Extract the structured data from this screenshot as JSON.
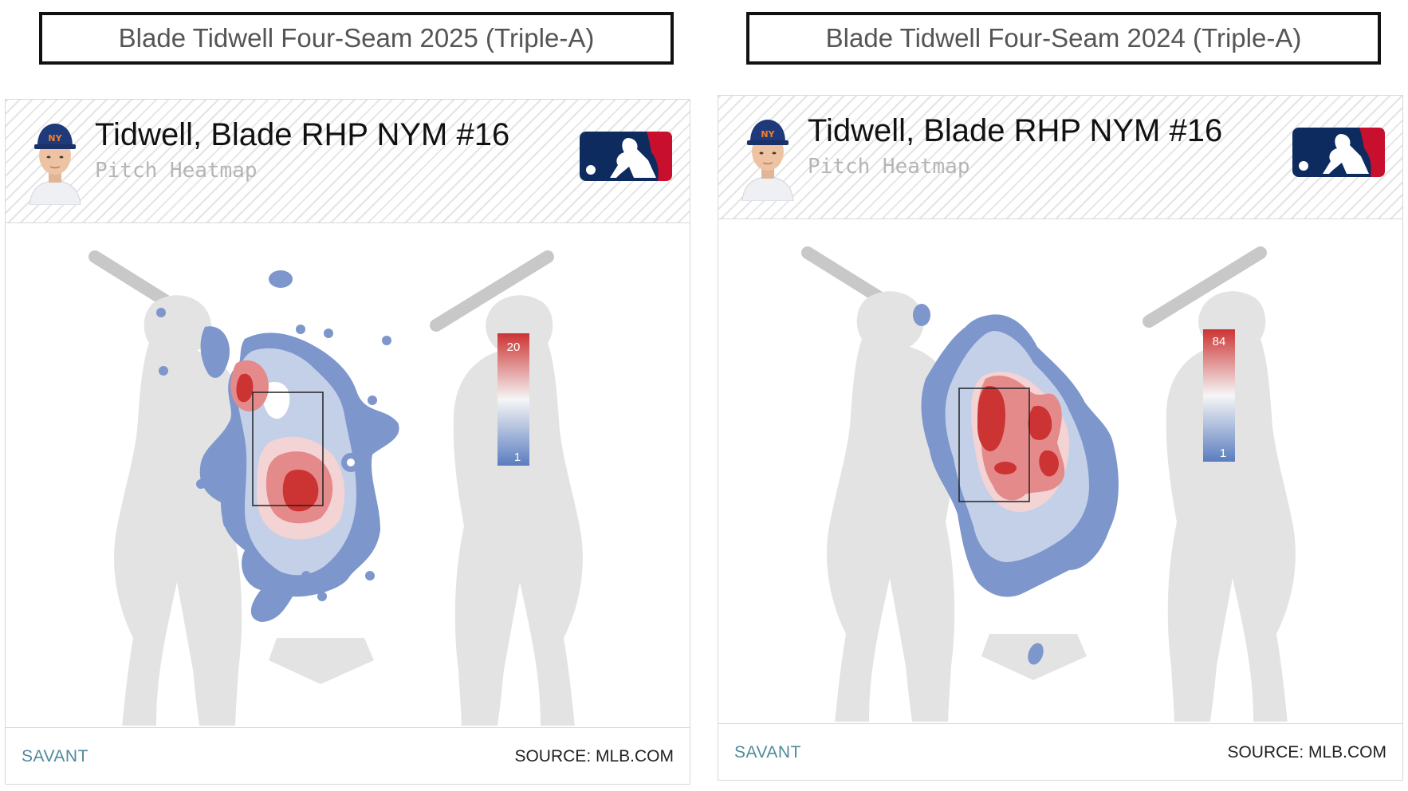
{
  "panels": [
    {
      "title": "Blade Tidwell Four-Seam 2025 (Triple-A)",
      "player": "Tidwell, Blade RHP NYM #16",
      "subtitle": "Pitch Heatmap",
      "legend_max": "20",
      "legend_min": "1",
      "footer_left": "SAVANT",
      "footer_right": "SOURCE: MLB.COM"
    },
    {
      "title": "Blade Tidwell Four-Seam 2024 (Triple-A)",
      "player": "Tidwell, Blade RHP NYM #16",
      "subtitle": "Pitch Heatmap",
      "legend_max": "84",
      "legend_min": "1",
      "footer_left": "SAVANT",
      "footer_right": "SOURCE: MLB.COM"
    }
  ],
  "colors": {
    "high": "#cc3333",
    "mid": "#f4f4f4",
    "low": "#5a7dbf",
    "silhouette": "#e3e3e3",
    "bat": "#c8c8c8"
  },
  "chart_data": [
    {
      "type": "heatmap",
      "title": "Blade Tidwell Four-Seam 2025 (Triple-A)",
      "legend_range": [
        1,
        20
      ],
      "scale_colors": [
        "#5a7dbf",
        "#f4f4f4",
        "#cc3333"
      ]
    },
    {
      "type": "heatmap",
      "title": "Blade Tidwell Four-Seam 2024 (Triple-A)",
      "legend_range": [
        1,
        84
      ],
      "scale_colors": [
        "#5a7dbf",
        "#f4f4f4",
        "#cc3333"
      ]
    }
  ]
}
